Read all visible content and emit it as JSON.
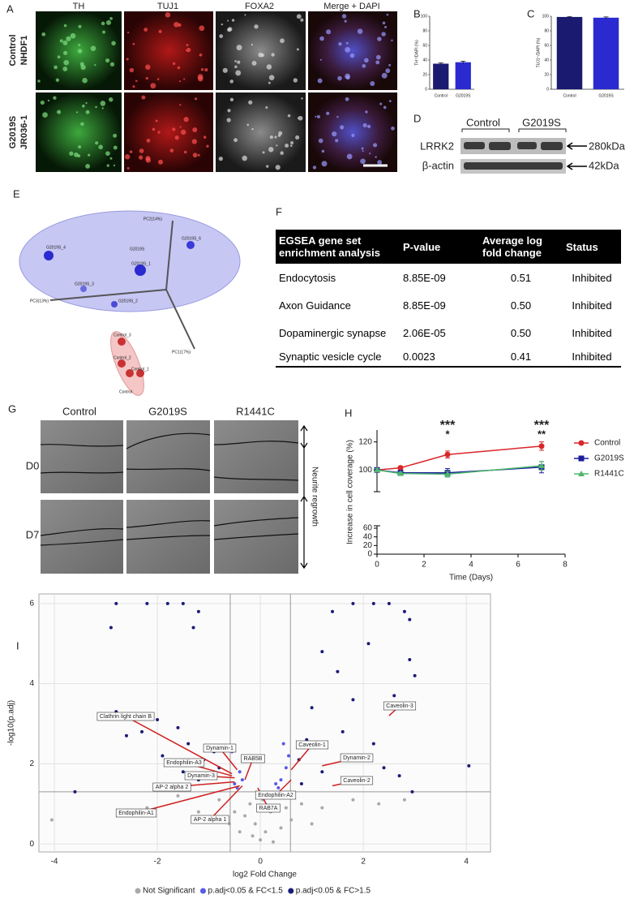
{
  "panel_labels": [
    "A",
    "B",
    "C",
    "D",
    "E",
    "F",
    "G",
    "H",
    "I"
  ],
  "figure_a": {
    "columns": [
      "TH",
      "TUJ1",
      "FOXA2",
      "Merge + DAPI"
    ],
    "rows": [
      [
        "Control",
        "NHDF1"
      ],
      [
        "G2019S",
        "JR036-1"
      ]
    ]
  },
  "figure_d": {
    "groups": [
      "Control",
      "G2019S"
    ],
    "bands": [
      {
        "name": "LRRK2",
        "size": "280kDa"
      },
      {
        "name": "β-actin",
        "size": "42kDa"
      }
    ]
  },
  "figure_e": {
    "axes": [
      "PC2(14%)",
      "PC3(13%)",
      "PC1(17%)"
    ],
    "samples": [
      "G2019S_4",
      "G2019S",
      "G2019S_6",
      "G2019S_1",
      "G2019S_3",
      "G2019S_2",
      "Control_3",
      "Control_2",
      "Control_1",
      "Control"
    ]
  },
  "table_f": {
    "header": [
      "EGSEA gene set enrichment analysis",
      "P-value",
      "Average log fold change",
      "Status"
    ],
    "rows": [
      [
        "Endocytosis",
        "8.85E-09",
        "0.51",
        "Inhibited"
      ],
      [
        "Axon Guidance",
        "8.85E-09",
        "0.50",
        "Inhibited"
      ],
      [
        "Dopaminergic synapse",
        "2.06E-05",
        "0.50",
        "Inhibited"
      ],
      [
        "Synaptic vesicle cycle",
        "0.0023",
        "0.41",
        "Inhibited"
      ]
    ]
  },
  "figure_g": {
    "columns": [
      "Control",
      "G2019S",
      "R1441C"
    ],
    "rows": [
      "D0",
      "D7"
    ],
    "annotation": "Neurite regrowth"
  },
  "chart_data": [
    {
      "type": "bar",
      "ylabel": "TH⁺/DAPI (%)",
      "categories": [
        "Control",
        "G2019S"
      ],
      "values": [
        35,
        37
      ],
      "errors": [
        1,
        1.5
      ],
      "colors": [
        "#1a1a70",
        "#2a2ad0"
      ],
      "ylim": [
        0,
        100
      ],
      "yticks": [
        0,
        20,
        40,
        60,
        80,
        100
      ]
    },
    {
      "type": "bar",
      "ylabel": "TUJ1⁺/DAPI (%)",
      "categories": [
        "Control",
        "G2019S"
      ],
      "values": [
        99,
        98
      ],
      "errors": [
        0.5,
        1
      ],
      "colors": [
        "#1a1a70",
        "#2a2ad0"
      ],
      "ylim": [
        0,
        100
      ],
      "yticks": [
        0,
        20,
        40,
        60,
        80,
        100
      ]
    },
    {
      "type": "line",
      "xlabel": "Time (Days)",
      "ylabel": "Increase in cell coverage (%)",
      "x": [
        0,
        1,
        3,
        7
      ],
      "series": [
        {
          "name": "Control",
          "color": "#d9262a",
          "marker": "circle",
          "values": [
            100,
            101.5,
            111,
            117
          ],
          "errors": [
            1,
            1,
            2.5,
            3
          ]
        },
        {
          "name": "G2019S",
          "color": "#1c1c9c",
          "marker": "square",
          "values": [
            100,
            98,
            98,
            102
          ],
          "errors": [
            1,
            1.5,
            3,
            4
          ]
        },
        {
          "name": "R1441C",
          "color": "#4db86b",
          "marker": "triangle",
          "values": [
            100,
            97.5,
            97,
            103
          ],
          "errors": [
            1,
            1,
            2,
            3
          ]
        }
      ],
      "xlim": [
        0,
        8
      ],
      "xticks": [
        0,
        2,
        4,
        6,
        8
      ],
      "y_segments": [
        {
          "ylim": [
            0,
            60
          ],
          "yticks": [
            0,
            20,
            40,
            60
          ]
        },
        {
          "ylim": [
            88,
            125
          ],
          "yticks": [
            100,
            120
          ]
        }
      ],
      "annotations": [
        {
          "text": "***",
          "x": 3,
          "color": "#2424c8"
        },
        {
          "text": "*",
          "x": 3,
          "color": "#4db86b"
        },
        {
          "text": "***",
          "x": 7,
          "color": "#2424c8"
        },
        {
          "text": "**",
          "x": 7,
          "color": "#4db86b"
        }
      ]
    },
    {
      "type": "scatter",
      "xlabel": "log2 Fold Change",
      "ylabel": "-log10(p.adj)",
      "xlim": [
        -4.3,
        4.47
      ],
      "ylim": [
        -0.2,
        6.24
      ],
      "xticks": [
        -4,
        -2,
        0,
        2,
        4
      ],
      "yticks": [
        0,
        2,
        4,
        6
      ],
      "grid": true,
      "vlines": [
        -0.585,
        0.585
      ],
      "hline": 1.301,
      "series": [
        {
          "name": "Not Significant",
          "color": "#a9a9a9",
          "x": [
            0,
            0.1,
            -0.1,
            0.2,
            -0.2,
            0.3,
            -0.3,
            0.05,
            -0.05,
            0.8,
            1.2,
            -0.8,
            -1.2,
            1.8,
            -1.6,
            2.3,
            -2.2,
            0.4,
            -0.4,
            0.6,
            -0.6,
            -4.05,
            2.8,
            0.15,
            -0.15,
            1.0,
            -1.0,
            0.5,
            -0.5,
            0.25
          ],
          "y": [
            0.1,
            0.3,
            0.5,
            0.8,
            1.0,
            1.2,
            0.7,
            1.1,
            0.9,
            1.0,
            0.9,
            1.1,
            0.8,
            1.1,
            1.2,
            1.0,
            0.9,
            0.4,
            0.3,
            0.6,
            0.5,
            0.6,
            1.1,
            1.2,
            0.2,
            0.5,
            0.6,
            0.9,
            0.8,
            0.05
          ]
        },
        {
          "name": "p.adj<0.05 & FC<1.5",
          "color": "#5a5ae6",
          "x": [
            -0.5,
            -0.4,
            -0.3,
            -0.45,
            0.4,
            0.5,
            0.35,
            0.55,
            0.45,
            -0.55,
            -0.35,
            0.3
          ],
          "y": [
            1.5,
            1.8,
            2.1,
            1.4,
            1.6,
            1.9,
            1.4,
            2.2,
            2.5,
            2.3,
            1.6,
            1.5
          ]
        },
        {
          "name": "p.adj<0.05 & FC>1.5",
          "color": "#1b1b78",
          "x": [
            -2.8,
            -2.2,
            -1.8,
            -1.5,
            -1.2,
            2.5,
            2.2,
            1.8,
            1.4,
            2.8,
            -2.9,
            -1.3,
            4.05,
            -3.6,
            3.0,
            2.9,
            2.9,
            -2.0,
            -2.4,
            -1.6,
            -2.3,
            -2.6,
            -2.8,
            1.5,
            1.2,
            2.1,
            1.8,
            1.0,
            0.9,
            1.6,
            2.2,
            2.6,
            0.75,
            -0.9,
            -1.1,
            -1.4,
            -0.8,
            -1.2,
            1.2,
            0.8,
            1.9,
            2.4,
            -1.5,
            -1.9,
            2.7,
            2.95
          ],
          "y": [
            6.0,
            6.0,
            6.0,
            6.0,
            5.8,
            6.0,
            6.0,
            6.0,
            5.8,
            5.8,
            5.4,
            5.4,
            1.95,
            1.3,
            4.2,
            4.6,
            5.6,
            3.1,
            3.2,
            2.9,
            2.8,
            2.7,
            3.3,
            4.3,
            4.8,
            5.0,
            3.6,
            3.4,
            2.6,
            2.8,
            2.5,
            3.7,
            2.1,
            2.3,
            2.1,
            2.5,
            1.9,
            1.6,
            1.8,
            1.5,
            2.1,
            1.9,
            1.8,
            2.2,
            1.7,
            1.3
          ]
        }
      ],
      "annotations": [
        {
          "text": "Clathrin light chain B",
          "x": -0.55,
          "y": 1.75
        },
        {
          "text": "Dynamin-1",
          "x": -0.45,
          "y": 1.85
        },
        {
          "text": "Endophilin-A3",
          "x": -0.55,
          "y": 1.7
        },
        {
          "text": "Dynamin-3",
          "x": -0.5,
          "y": 1.65
        },
        {
          "text": "AP-2 alpha 2",
          "x": -0.5,
          "y": 1.55
        },
        {
          "text": "Endophilin-A1",
          "x": -0.4,
          "y": 1.45
        },
        {
          "text": "AP-2 alpha 1",
          "x": -0.35,
          "y": 1.45
        },
        {
          "text": "RAB5B",
          "x": -0.3,
          "y": 1.6
        },
        {
          "text": "RAB7A",
          "x": -0.05,
          "y": 1.4
        },
        {
          "text": "Endophilin-A2",
          "x": 0.6,
          "y": 1.6
        },
        {
          "text": "Caveolin-1",
          "x": 0.6,
          "y": 1.85
        },
        {
          "text": "Dynamin-2",
          "x": 1.2,
          "y": 1.95
        },
        {
          "text": "Caveolin-2",
          "x": 1.4,
          "y": 1.45
        },
        {
          "text": "Caveolin-3",
          "x": 2.5,
          "y": 3.2
        }
      ]
    }
  ]
}
